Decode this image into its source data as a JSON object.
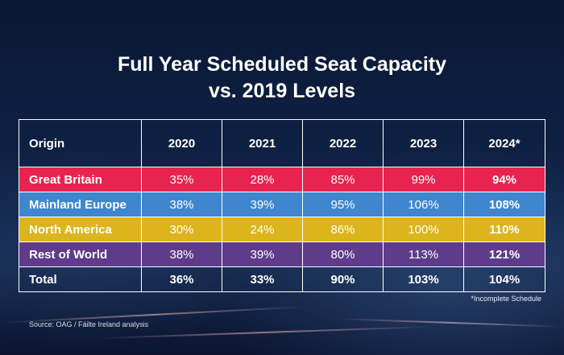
{
  "chart_data": {
    "type": "table",
    "title": "Full Year Scheduled Seat Capacity vs. 2019 Levels",
    "title_lines": [
      "Full Year Scheduled Seat Capacity",
      "vs. 2019 Levels"
    ],
    "columns": [
      "Origin",
      "2020",
      "2021",
      "2022",
      "2023",
      "2024*"
    ],
    "rows": [
      {
        "origin": "Great Britain",
        "values": [
          "35%",
          "28%",
          "85%",
          "99%",
          "94%"
        ],
        "color": "#e8234f"
      },
      {
        "origin": "Mainland Europe",
        "values": [
          "38%",
          "39%",
          "95%",
          "106%",
          "108%"
        ],
        "color": "#3f86cf"
      },
      {
        "origin": "North America",
        "values": [
          "30%",
          "24%",
          "86%",
          "100%",
          "110%"
        ],
        "color": "#dcb51c"
      },
      {
        "origin": "Rest of World",
        "values": [
          "38%",
          "39%",
          "80%",
          "113%",
          "121%"
        ],
        "color": "#5e3c8a"
      }
    ],
    "total": {
      "origin": "Total",
      "values": [
        "36%",
        "33%",
        "90%",
        "103%",
        "104%"
      ]
    }
  },
  "footnote": "*Incomplete Schedule",
  "source": "Source: OAG / Fáilte Ireland analysis"
}
